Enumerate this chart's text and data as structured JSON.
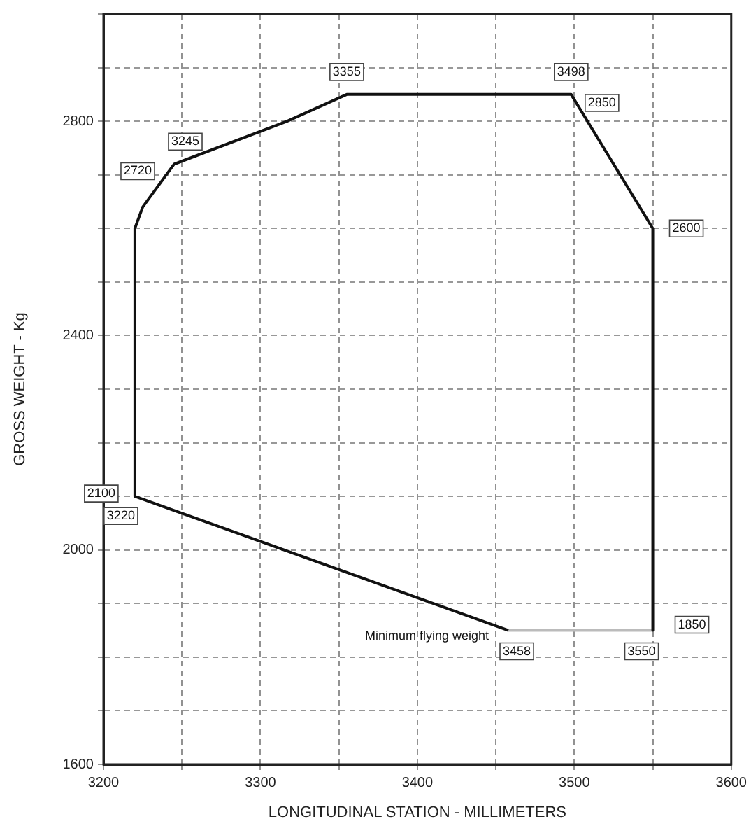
{
  "chart_data": {
    "type": "line",
    "xlabel": "LONGITUDINAL STATION - MILLIMETERS",
    "ylabel": "GROSS WEIGHT - Kg",
    "xlim": [
      3200,
      3600
    ],
    "ylim": [
      1600,
      3000
    ],
    "xticks": [
      3200,
      {
        "value": 3250,
        "label": null
      },
      3300,
      {
        "value": 3350,
        "label": null
      },
      3400,
      {
        "value": 3450,
        "label": null
      },
      3500,
      {
        "value": 3550,
        "label": null
      },
      3600
    ],
    "yticks": [
      1600,
      {
        "value": 1700,
        "label": null
      },
      {
        "value": 1800,
        "label": null
      },
      {
        "value": 1900,
        "label": null
      },
      2000,
      {
        "value": 2100,
        "label": null
      },
      {
        "value": 2200,
        "label": null
      },
      {
        "value": 2300,
        "label": null
      },
      2400,
      {
        "value": 2500,
        "label": null
      },
      {
        "value": 2600,
        "label": null
      },
      {
        "value": 2700,
        "label": null
      },
      2800,
      {
        "value": 2900,
        "label": null
      },
      {
        "value": 3000,
        "label": null
      }
    ],
    "grid": true,
    "marker": "none",
    "line_style": "solid",
    "series": [
      {
        "color": "#111111",
        "x": [
          3458,
          3220,
          3220,
          3225,
          3245,
          3317,
          3355,
          3498,
          3550,
          3550
        ],
        "values": [
          1850,
          2100,
          2600,
          2640,
          2720,
          2800,
          2850,
          2850,
          2600,
          1850
        ]
      },
      {
        "color": "#bbbbbb",
        "x": [
          3458,
          3550
        ],
        "values": [
          1850,
          1850
        ]
      }
    ],
    "annotations": [
      {
        "text": "3355",
        "x": 3355,
        "y": 2850
      },
      {
        "text": "3498",
        "x": 3498,
        "y": 2850
      },
      {
        "text": "2850",
        "x": 3498,
        "y": 2850
      },
      {
        "text": "2600",
        "x": 3550,
        "y": 2600
      },
      {
        "text": "3245",
        "x": 3245,
        "y": 2720
      },
      {
        "text": "2720",
        "x": 3245,
        "y": 2720
      },
      {
        "text": "2100",
        "x": 3220,
        "y": 2100
      },
      {
        "text": "3220",
        "x": 3220,
        "y": 2100
      },
      {
        "text": "1850",
        "x": 3550,
        "y": 1850
      },
      {
        "text": "3550",
        "x": 3550,
        "y": 1850
      },
      {
        "text": "3458",
        "x": 3458,
        "y": 1850
      },
      {
        "text": "Minimum flying weight",
        "x": 3458,
        "y": 1850
      }
    ]
  }
}
